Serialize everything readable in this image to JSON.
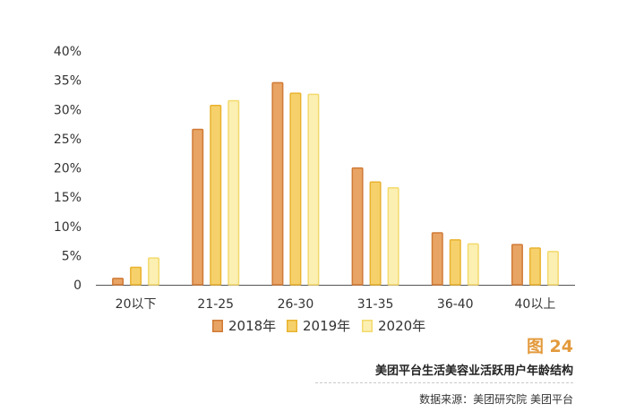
{
  "colors": {
    "2018": {
      "fill": "#E8A464",
      "stroke": "#D07A36"
    },
    "2019": {
      "fill": "#F6D16B",
      "stroke": "#E9B22F"
    },
    "2020": {
      "fill": "#FCEFB2",
      "stroke": "#F3DA6D"
    },
    "axis": "#555555",
    "text": "#333333",
    "accent": "#E39A3C"
  },
  "figure_number": "图 24",
  "caption": "美团平台生活美容业活跃用户年龄结构",
  "source": "数据来源：美团研究院  美团平台",
  "chart_data": {
    "type": "bar",
    "title": "",
    "xlabel": "",
    "ylabel": "",
    "categories": [
      "20以下",
      "21-25",
      "26-30",
      "31-35",
      "36-40",
      "40以上"
    ],
    "series": [
      {
        "name": "2018年",
        "values": [
          1.2,
          26.7,
          34.7,
          20.1,
          9.0,
          7.0
        ]
      },
      {
        "name": "2019年",
        "values": [
          3.1,
          30.8,
          32.9,
          17.7,
          7.8,
          6.4
        ]
      },
      {
        "name": "2020年",
        "values": [
          4.7,
          31.6,
          32.7,
          16.7,
          7.1,
          5.8
        ]
      }
    ],
    "ylim": [
      0,
      40
    ],
    "yticks": [
      "0",
      "5%",
      "10%",
      "15%",
      "20%",
      "25%",
      "30%",
      "35%",
      "40%"
    ],
    "legend_position": "bottom",
    "grid": false
  }
}
